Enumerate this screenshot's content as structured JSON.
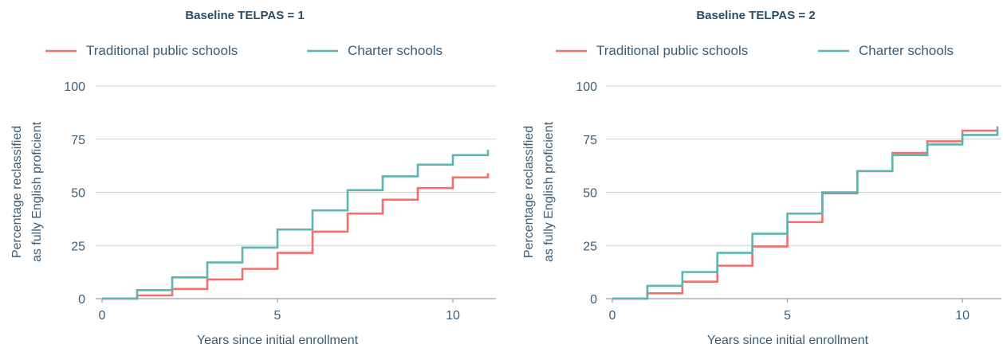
{
  "colors": {
    "traditional": "#f2706c",
    "charter": "#5bb5b0"
  },
  "chart_data": [
    {
      "type": "line",
      "step": true,
      "title": "Baseline TELPAS = 1",
      "xlabel": "Years since initial enrollment",
      "ylabel": [
        "Percentage reclassified",
        "as fully English proficient"
      ],
      "xlim": [
        0,
        11
      ],
      "ylim": [
        0,
        100
      ],
      "xticks": [
        "0",
        "5",
        "10"
      ],
      "yticks": [
        "0",
        "25",
        "50",
        "75",
        "100"
      ],
      "grid": true,
      "legend": "top",
      "x": [
        0,
        1,
        2,
        3,
        4,
        5,
        6,
        7,
        8,
        9,
        10,
        11
      ],
      "series": [
        {
          "name": "Traditional public schools",
          "values": [
            0,
            1.5,
            4.5,
            9,
            14,
            21.5,
            31.5,
            40,
            46.5,
            52,
            57,
            59
          ]
        },
        {
          "name": "Charter schools",
          "values": [
            0,
            4,
            10,
            17,
            24,
            32.5,
            41.5,
            51,
            57.5,
            63,
            67.5,
            70
          ]
        }
      ]
    },
    {
      "type": "line",
      "step": true,
      "title": "Baseline TELPAS = 2",
      "xlabel": "Years since initial enrollment",
      "ylabel": [
        "Percentage reclassified",
        "as fully English proficient"
      ],
      "xlim": [
        0,
        11
      ],
      "ylim": [
        0,
        100
      ],
      "xticks": [
        "0",
        "5",
        "10"
      ],
      "yticks": [
        "0",
        "25",
        "50",
        "75",
        "100"
      ],
      "grid": true,
      "legend": "top",
      "x": [
        0,
        1,
        2,
        3,
        4,
        5,
        6,
        7,
        8,
        9,
        10,
        11
      ],
      "series": [
        {
          "name": "Traditional public schools",
          "values": [
            0,
            2.5,
            8,
            15.5,
            24.5,
            36,
            49.5,
            60,
            68.5,
            74,
            79,
            80
          ]
        },
        {
          "name": "Charter schools",
          "values": [
            0,
            6,
            12.5,
            21.5,
            30.5,
            40,
            50,
            60,
            67.5,
            72.5,
            77,
            81
          ]
        }
      ]
    }
  ]
}
